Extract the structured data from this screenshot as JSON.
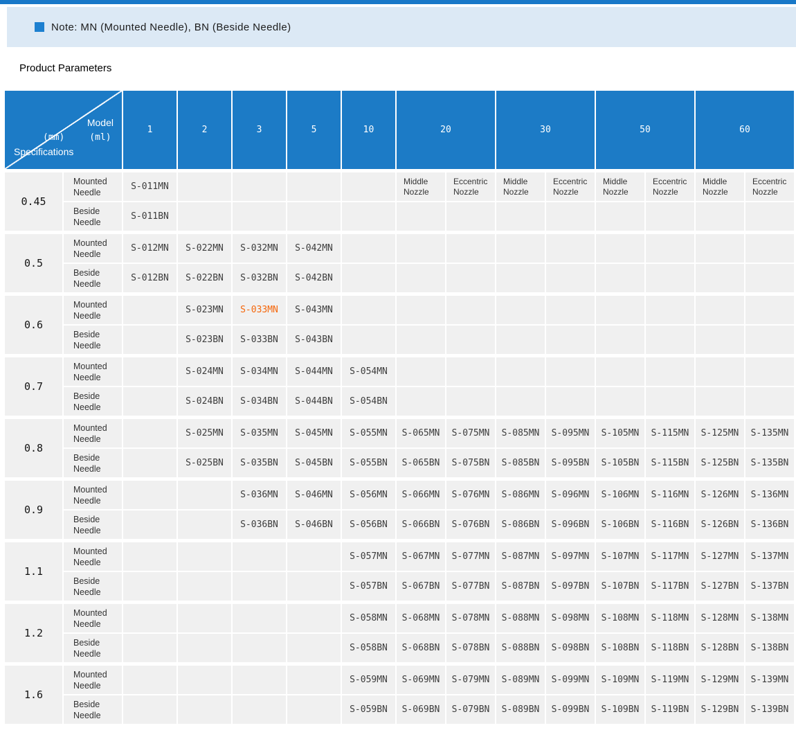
{
  "note": {
    "text": "Note: MN (Mounted Needle), BN (Beside Needle)"
  },
  "section": {
    "title": "Product Parameters"
  },
  "colors": {
    "accent_blue": "#1c7bc6",
    "banner_blue": "#dce9f5",
    "cell_gray": "#f0f0f0",
    "highlight_orange": "#f5660a"
  },
  "table": {
    "corner": {
      "top_label": "Model",
      "top_unit": "(ml)",
      "bottom_unit": "(mm)",
      "bottom_label": "Specifications"
    },
    "ml_columns": [
      {
        "label": "1",
        "span": 1
      },
      {
        "label": "2",
        "span": 1
      },
      {
        "label": "3",
        "span": 1
      },
      {
        "label": "5",
        "span": 1
      },
      {
        "label": "10",
        "span": 1
      },
      {
        "label": "20",
        "span": 2
      },
      {
        "label": "30",
        "span": 2
      },
      {
        "label": "50",
        "span": 2
      },
      {
        "label": "60",
        "span": 2
      }
    ],
    "needle_labels": {
      "mounted": "Mounted Needle",
      "beside": "Beside Needle"
    },
    "nozzle_sub_headers": [
      "Middle Nozzle",
      "Eccentric Nozzle",
      "Middle Nozzle",
      "Eccentric Nozzle",
      "Middle Nozzle",
      "Eccentric Nozzle",
      "Middle Nozzle",
      "Eccentric Nozzle"
    ],
    "highlight": {
      "value": "S-033MN"
    },
    "rows": [
      {
        "spec": "0.45",
        "mounted": [
          "S-011MN",
          "",
          "",
          "",
          "",
          "",
          "",
          "",
          "",
          "",
          "",
          "",
          ""
        ],
        "beside": [
          "S-011BN",
          "",
          "",
          "",
          "",
          "",
          "",
          "",
          "",
          "",
          "",
          "",
          ""
        ]
      },
      {
        "spec": "0.5",
        "mounted": [
          "S-012MN",
          "S-022MN",
          "S-032MN",
          "S-042MN",
          "",
          "",
          "",
          "",
          "",
          "",
          "",
          "",
          ""
        ],
        "beside": [
          "S-012BN",
          "S-022BN",
          "S-032BN",
          "S-042BN",
          "",
          "",
          "",
          "",
          "",
          "",
          "",
          "",
          ""
        ]
      },
      {
        "spec": "0.6",
        "mounted": [
          "",
          "S-023MN",
          "S-033MN",
          "S-043MN",
          "",
          "",
          "",
          "",
          "",
          "",
          "",
          "",
          ""
        ],
        "beside": [
          "",
          "S-023BN",
          "S-033BN",
          "S-043BN",
          "",
          "",
          "",
          "",
          "",
          "",
          "",
          "",
          ""
        ]
      },
      {
        "spec": "0.7",
        "mounted": [
          "",
          "S-024MN",
          "S-034MN",
          "S-044MN",
          "S-054MN",
          "",
          "",
          "",
          "",
          "",
          "",
          "",
          ""
        ],
        "beside": [
          "",
          "S-024BN",
          "S-034BN",
          "S-044BN",
          "S-054BN",
          "",
          "",
          "",
          "",
          "",
          "",
          "",
          ""
        ]
      },
      {
        "spec": "0.8",
        "mounted": [
          "",
          "S-025MN",
          "S-035MN",
          "S-045MN",
          "S-055MN",
          "S-065MN",
          "S-075MN",
          "S-085MN",
          "S-095MN",
          "S-105MN",
          "S-115MN",
          "S-125MN",
          "S-135MN"
        ],
        "beside": [
          "",
          "S-025BN",
          "S-035BN",
          "S-045BN",
          "S-055BN",
          "S-065BN",
          "S-075BN",
          "S-085BN",
          "S-095BN",
          "S-105BN",
          "S-115BN",
          "S-125BN",
          "S-135BN"
        ]
      },
      {
        "spec": "0.9",
        "mounted": [
          "",
          "",
          "S-036MN",
          "S-046MN",
          "S-056MN",
          "S-066MN",
          "S-076MN",
          "S-086MN",
          "S-096MN",
          "S-106MN",
          "S-116MN",
          "S-126MN",
          "S-136MN"
        ],
        "beside": [
          "",
          "",
          "S-036BN",
          "S-046BN",
          "S-056BN",
          "S-066BN",
          "S-076BN",
          "S-086BN",
          "S-096BN",
          "S-106BN",
          "S-116BN",
          "S-126BN",
          "S-136BN"
        ]
      },
      {
        "spec": "1.1",
        "mounted": [
          "",
          "",
          "",
          "",
          "S-057MN",
          "S-067MN",
          "S-077MN",
          "S-087MN",
          "S-097MN",
          "S-107MN",
          "S-117MN",
          "S-127MN",
          "S-137MN"
        ],
        "beside": [
          "",
          "",
          "",
          "",
          "S-057BN",
          "S-067BN",
          "S-077BN",
          "S-087BN",
          "S-097BN",
          "S-107BN",
          "S-117BN",
          "S-127BN",
          "S-137BN"
        ]
      },
      {
        "spec": "1.2",
        "mounted": [
          "",
          "",
          "",
          "",
          "S-058MN",
          "S-068MN",
          "S-078MN",
          "S-088MN",
          "S-098MN",
          "S-108MN",
          "S-118MN",
          "S-128MN",
          "S-138MN"
        ],
        "beside": [
          "",
          "",
          "",
          "",
          "S-058BN",
          "S-068BN",
          "S-078BN",
          "S-088BN",
          "S-098BN",
          "S-108BN",
          "S-118BN",
          "S-128BN",
          "S-138BN"
        ]
      },
      {
        "spec": "1.6",
        "mounted": [
          "",
          "",
          "",
          "",
          "S-059MN",
          "S-069MN",
          "S-079MN",
          "S-089MN",
          "S-099MN",
          "S-109MN",
          "S-119MN",
          "S-129MN",
          "S-139MN"
        ],
        "beside": [
          "",
          "",
          "",
          "",
          "S-059BN",
          "S-069BN",
          "S-079BN",
          "S-089BN",
          "S-099BN",
          "S-109BN",
          "S-119BN",
          "S-129BN",
          "S-139BN"
        ]
      }
    ]
  }
}
